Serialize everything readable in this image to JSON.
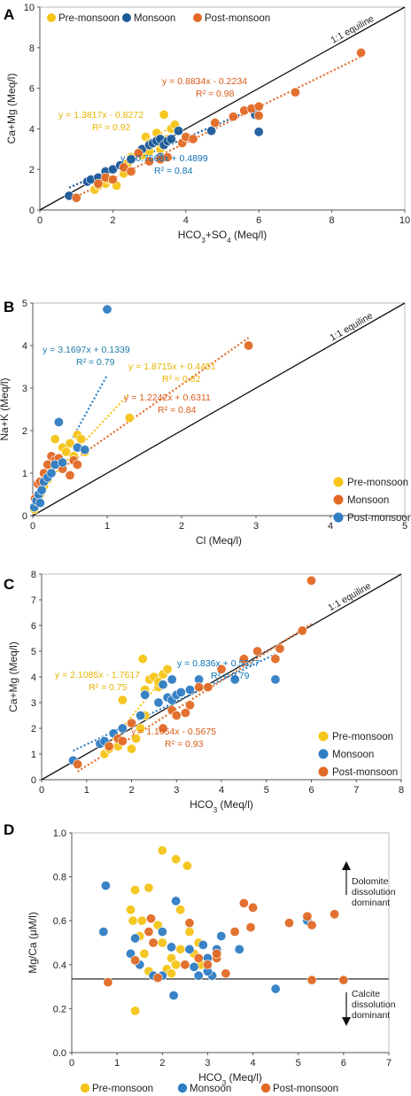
{
  "colors": {
    "pre": "#f5c518",
    "mon": "#1c5a9a",
    "post": "#e26a25",
    "blue2": "#2f7dc3",
    "eqPre": "#e8b400",
    "eqMon": "#0e72b8",
    "eqPost": "#d85a1a",
    "eqB2": "#1d7aa8"
  },
  "chart_data": [
    {
      "panel": "A",
      "type": "scatter",
      "xlabel": "HCO3+SO4 (Meq/l)",
      "ylabel": "Ca+Mg (Meq/l)",
      "xlim": [
        0,
        10
      ],
      "ylim": [
        0,
        10
      ],
      "xticks": [
        "0",
        "2",
        "4",
        "6",
        "8",
        "10"
      ],
      "yticks": [
        "0",
        "2",
        "4",
        "6",
        "8",
        "10"
      ],
      "legend_position": "top-left",
      "reference_line": "1:1 equiline",
      "series": [
        {
          "name": "Pre-monsoon",
          "color": "pre",
          "equation": "y = 1.3817x - 0.8272",
          "r2": "R² = 0.92",
          "points": [
            [
              1.5,
              1.0
            ],
            [
              1.6,
              1.2
            ],
            [
              1.8,
              1.3
            ],
            [
              1.9,
              1.5
            ],
            [
              2.1,
              1.2
            ],
            [
              2.3,
              1.8
            ],
            [
              2.4,
              2.3
            ],
            [
              2.5,
              2.6
            ],
            [
              2.8,
              2.7
            ],
            [
              2.9,
              3.6
            ],
            [
              3.0,
              3.3
            ],
            [
              3.2,
              3.8
            ],
            [
              3.3,
              3.0
            ],
            [
              3.4,
              4.7
            ],
            [
              3.5,
              3.5
            ],
            [
              3.6,
              4.0
            ],
            [
              3.7,
              4.2
            ],
            [
              3.3,
              3.3
            ],
            [
              3.0,
              2.9
            ]
          ]
        },
        {
          "name": "Monsoon",
          "color": "mon",
          "equation": "y = 0.7668x + 0.4899",
          "r2": "R² = 0.84",
          "points": [
            [
              0.8,
              0.7
            ],
            [
              1.3,
              1.4
            ],
            [
              1.4,
              1.5
            ],
            [
              1.6,
              1.6
            ],
            [
              1.8,
              1.9
            ],
            [
              2.0,
              2.0
            ],
            [
              2.2,
              2.2
            ],
            [
              2.5,
              2.5
            ],
            [
              2.8,
              3.0
            ],
            [
              3.0,
              3.2
            ],
            [
              3.1,
              3.3
            ],
            [
              3.2,
              3.4
            ],
            [
              3.3,
              3.5
            ],
            [
              3.4,
              3.2
            ],
            [
              3.5,
              3.4
            ],
            [
              3.6,
              3.5
            ],
            [
              3.8,
              3.9
            ],
            [
              4.7,
              3.9
            ],
            [
              5.9,
              4.7
            ],
            [
              6.0,
              3.85
            ],
            [
              3.3,
              2.6
            ]
          ]
        },
        {
          "name": "Post-monsoon",
          "color": "post",
          "equation": "y = 0.8834x - 0.2234",
          "r2": "R² = 0.98",
          "points": [
            [
              1.0,
              0.6
            ],
            [
              1.6,
              1.3
            ],
            [
              1.8,
              1.6
            ],
            [
              2.0,
              1.5
            ],
            [
              2.3,
              2.1
            ],
            [
              2.5,
              1.9
            ],
            [
              2.7,
              2.8
            ],
            [
              3.0,
              2.4
            ],
            [
              3.3,
              2.5
            ],
            [
              3.5,
              2.6
            ],
            [
              3.9,
              3.3
            ],
            [
              4.0,
              3.6
            ],
            [
              4.2,
              3.5
            ],
            [
              4.8,
              4.3
            ],
            [
              5.3,
              4.6
            ],
            [
              5.6,
              4.9
            ],
            [
              5.8,
              5.0
            ],
            [
              6.0,
              5.1
            ],
            [
              6.0,
              4.65
            ],
            [
              7.0,
              5.8
            ],
            [
              8.8,
              7.75
            ]
          ]
        }
      ]
    },
    {
      "panel": "B",
      "type": "scatter",
      "xlabel": "Cl (Meq/l)",
      "ylabel": "Na+K (Meq/l)",
      "xlim": [
        0,
        5
      ],
      "ylim": [
        0,
        5
      ],
      "xticks": [
        "0",
        "1",
        "2",
        "3",
        "4",
        "5"
      ],
      "yticks": [
        "0",
        "1",
        "2",
        "3",
        "4",
        "5"
      ],
      "legend_position": "bottom-right",
      "reference_line": "1:1 equiline",
      "series": [
        {
          "name": "Pre-monsoon",
          "color": "pre",
          "equation": "y = 1.8715x + 0.4451",
          "r2": "R² = 0.82",
          "points": [
            [
              0.02,
              0.15
            ],
            [
              0.05,
              0.3
            ],
            [
              0.1,
              0.5
            ],
            [
              0.15,
              0.7
            ],
            [
              0.2,
              0.85
            ],
            [
              0.25,
              1.2
            ],
            [
              0.3,
              1.8
            ],
            [
              0.4,
              1.6
            ],
            [
              0.45,
              1.5
            ],
            [
              0.5,
              1.7
            ],
            [
              0.55,
              1.4
            ],
            [
              0.6,
              1.9
            ],
            [
              0.65,
              1.8
            ],
            [
              0.7,
              1.5
            ],
            [
              1.3,
              2.3
            ]
          ]
        },
        {
          "name": "Monsoon",
          "color": "post",
          "equation": "y = 1.2242x + 0.6311",
          "r2": "R² = 0.84",
          "points": [
            [
              0.03,
              0.4
            ],
            [
              0.07,
              0.75
            ],
            [
              0.1,
              0.8
            ],
            [
              0.15,
              1.0
            ],
            [
              0.2,
              1.2
            ],
            [
              0.25,
              1.4
            ],
            [
              0.3,
              1.3
            ],
            [
              0.35,
              1.35
            ],
            [
              0.4,
              1.1
            ],
            [
              0.5,
              0.95
            ],
            [
              0.55,
              1.3
            ],
            [
              0.6,
              1.2
            ],
            [
              2.9,
              4.0
            ]
          ]
        },
        {
          "name": "Post-monsoon",
          "color": "blue2",
          "equation": "y = 3.1697x + 0.1339",
          "r2": "R² = 0.79",
          "points": [
            [
              0.02,
              0.2
            ],
            [
              0.05,
              0.35
            ],
            [
              0.08,
              0.5
            ],
            [
              0.1,
              0.3
            ],
            [
              0.12,
              0.6
            ],
            [
              0.15,
              0.8
            ],
            [
              0.2,
              0.9
            ],
            [
              0.25,
              1.0
            ],
            [
              0.3,
              1.2
            ],
            [
              0.35,
              2.2
            ],
            [
              0.4,
              1.25
            ],
            [
              0.6,
              1.6
            ],
            [
              0.7,
              1.55
            ],
            [
              1.0,
              4.85
            ]
          ]
        }
      ]
    },
    {
      "panel": "C",
      "type": "scatter",
      "xlabel": "HCO3 (Meq/l)",
      "ylabel": "Ca+Mg (Meq/l)",
      "xlim": [
        0,
        8
      ],
      "ylim": [
        0,
        8
      ],
      "xticks": [
        "0",
        "1",
        "2",
        "3",
        "4",
        "5",
        "6",
        "7",
        "8"
      ],
      "yticks": [
        "0",
        "1",
        "2",
        "3",
        "4",
        "5",
        "6",
        "7",
        "8"
      ],
      "legend_position": "bottom-right",
      "reference_line": "1:1 equiline",
      "series": [
        {
          "name": "Pre-monsoon",
          "color": "pre",
          "equation": "y = 2.1085x - 1.7617",
          "r2": "R² = 0.75",
          "points": [
            [
              1.4,
              1.0
            ],
            [
              1.5,
              1.2
            ],
            [
              1.7,
              1.3
            ],
            [
              1.8,
              3.1
            ],
            [
              2.0,
              1.2
            ],
            [
              2.1,
              1.6
            ],
            [
              2.2,
              2.0
            ],
            [
              2.3,
              2.5
            ],
            [
              2.3,
              3.5
            ],
            [
              2.4,
              3.9
            ],
            [
              2.5,
              4.0
            ],
            [
              2.6,
              3.6
            ],
            [
              2.6,
              3.8
            ],
            [
              2.7,
              4.1
            ],
            [
              2.8,
              4.3
            ],
            [
              2.25,
              4.7
            ]
          ]
        },
        {
          "name": "Monsoon",
          "color": "blue2",
          "equation": "y = 0.836x + 0.5377",
          "r2": "R² = 0.79",
          "points": [
            [
              0.7,
              0.75
            ],
            [
              1.3,
              1.4
            ],
            [
              1.4,
              1.5
            ],
            [
              1.6,
              1.8
            ],
            [
              1.8,
              2.0
            ],
            [
              2.2,
              2.5
            ],
            [
              2.3,
              3.3
            ],
            [
              2.6,
              3.0
            ],
            [
              2.7,
              3.7
            ],
            [
              2.8,
              3.2
            ],
            [
              2.9,
              3.1
            ],
            [
              3.0,
              3.3
            ],
            [
              3.1,
              3.4
            ],
            [
              3.3,
              3.5
            ],
            [
              3.5,
              3.9
            ],
            [
              4.3,
              3.9
            ],
            [
              5.2,
              3.9
            ],
            [
              2.9,
              3.9
            ]
          ]
        },
        {
          "name": "Post-monsoon",
          "color": "post",
          "equation": "y = 1.1054x - 0.5675",
          "r2": "R² = 0.93",
          "points": [
            [
              0.8,
              0.6
            ],
            [
              1.5,
              1.3
            ],
            [
              1.7,
              1.6
            ],
            [
              1.8,
              1.5
            ],
            [
              2.0,
              2.2
            ],
            [
              2.7,
              2.0
            ],
            [
              2.9,
              2.7
            ],
            [
              3.0,
              2.5
            ],
            [
              3.2,
              2.6
            ],
            [
              3.3,
              2.9
            ],
            [
              3.5,
              3.6
            ],
            [
              3.7,
              3.6
            ],
            [
              4.0,
              4.3
            ],
            [
              4.5,
              4.7
            ],
            [
              4.8,
              5.0
            ],
            [
              5.2,
              4.7
            ],
            [
              5.3,
              5.1
            ],
            [
              5.8,
              5.8
            ],
            [
              6.0,
              7.75
            ]
          ]
        }
      ]
    },
    {
      "panel": "D",
      "type": "scatter",
      "xlabel": "HCO3 (Meq/l)",
      "ylabel": "Mg/Ca (μM/l)",
      "xlim": [
        0,
        7
      ],
      "ylim": [
        0,
        1
      ],
      "xticks": [
        "0",
        "1",
        "2",
        "3",
        "4",
        "5",
        "6",
        "7"
      ],
      "yticks": [
        "0.0",
        "0.2",
        "0.4",
        "0.6",
        "0.8",
        "1.0"
      ],
      "legend_position": "bottom",
      "reference_value": 0.335,
      "annotations": {
        "upper": [
          "Dolomite",
          "dissolution",
          "dominant"
        ],
        "lower": [
          "Calcite",
          "dissolution",
          "dominant"
        ]
      },
      "series": [
        {
          "name": "Pre-monsoon",
          "color": "pre",
          "points": [
            [
              1.4,
              0.19
            ],
            [
              1.4,
              0.74
            ],
            [
              1.3,
              0.65
            ],
            [
              1.35,
              0.6
            ],
            [
              1.5,
              0.53
            ],
            [
              1.6,
              0.45
            ],
            [
              1.7,
              0.75
            ],
            [
              1.7,
              0.37
            ],
            [
              1.8,
              0.35
            ],
            [
              1.9,
              0.58
            ],
            [
              2.0,
              0.92
            ],
            [
              2.0,
              0.5
            ],
            [
              2.1,
              0.38
            ],
            [
              2.2,
              0.43
            ],
            [
              2.3,
              0.88
            ],
            [
              2.3,
              0.4
            ],
            [
              2.4,
              0.65
            ],
            [
              2.4,
              0.47
            ],
            [
              2.55,
              0.85
            ],
            [
              2.6,
              0.55
            ],
            [
              2.7,
              0.45
            ],
            [
              2.8,
              0.5
            ],
            [
              2.85,
              0.4
            ],
            [
              2.2,
              0.36
            ],
            [
              1.55,
              0.6
            ]
          ]
        },
        {
          "name": "Monsoon",
          "color": "blue2",
          "points": [
            [
              0.75,
              0.76
            ],
            [
              0.7,
              0.55
            ],
            [
              1.3,
              0.45
            ],
            [
              1.4,
              0.52
            ],
            [
              1.5,
              0.4
            ],
            [
              1.8,
              0.35
            ],
            [
              2.0,
              0.55
            ],
            [
              2.2,
              0.48
            ],
            [
              2.25,
              0.26
            ],
            [
              2.3,
              0.69
            ],
            [
              2.6,
              0.47
            ],
            [
              2.7,
              0.39
            ],
            [
              2.8,
              0.35
            ],
            [
              2.9,
              0.49
            ],
            [
              3.0,
              0.43
            ],
            [
              3.1,
              0.35
            ],
            [
              3.2,
              0.47
            ],
            [
              3.3,
              0.53
            ],
            [
              3.7,
              0.47
            ],
            [
              4.5,
              0.29
            ],
            [
              5.2,
              0.6
            ],
            [
              2.0,
              0.35
            ],
            [
              3.0,
              0.37
            ]
          ]
        },
        {
          "name": "Post-monsoon",
          "color": "post",
          "points": [
            [
              0.8,
              0.32
            ],
            [
              1.4,
              0.42
            ],
            [
              1.7,
              0.55
            ],
            [
              1.75,
              0.61
            ],
            [
              1.8,
              0.5
            ],
            [
              1.9,
              0.34
            ],
            [
              2.5,
              0.4
            ],
            [
              2.8,
              0.43
            ],
            [
              3.0,
              0.4
            ],
            [
              3.2,
              0.43
            ],
            [
              3.2,
              0.45
            ],
            [
              3.4,
              0.36
            ],
            [
              3.8,
              0.68
            ],
            [
              3.95,
              0.57
            ],
            [
              4.0,
              0.66
            ],
            [
              4.8,
              0.59
            ],
            [
              5.2,
              0.62
            ],
            [
              5.3,
              0.58
            ],
            [
              5.3,
              0.33
            ],
            [
              5.8,
              0.63
            ],
            [
              6.0,
              0.33
            ],
            [
              3.6,
              0.55
            ],
            [
              2.6,
              0.59
            ]
          ]
        }
      ]
    }
  ]
}
